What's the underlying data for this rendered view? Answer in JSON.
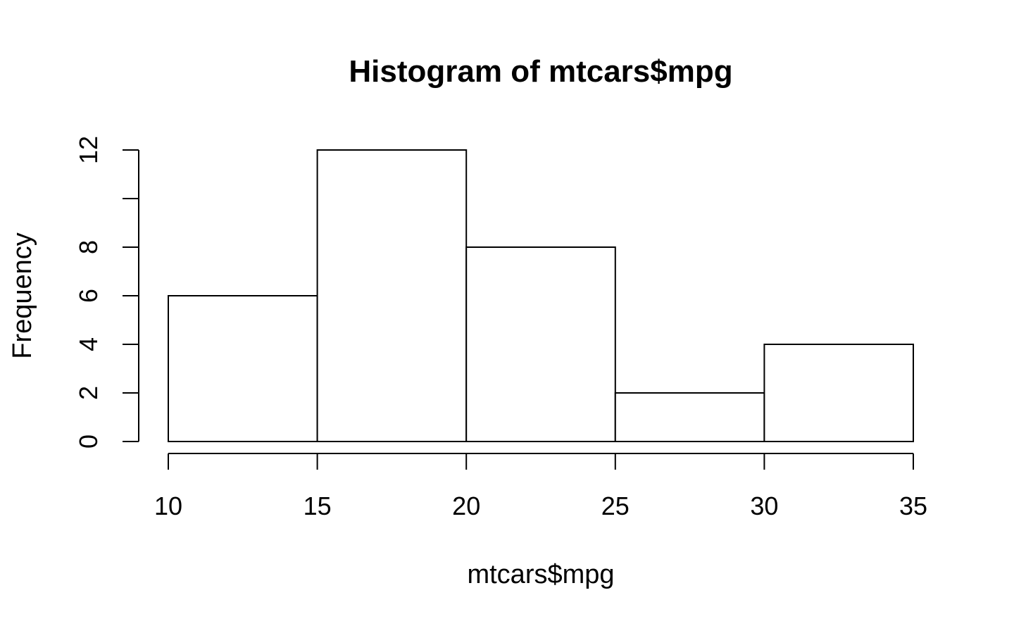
{
  "chart_data": {
    "type": "bar",
    "title": "Histogram of mtcars$mpg",
    "xlabel": "mtcars$mpg",
    "ylabel": "Frequency",
    "bins": [
      {
        "from": 10,
        "to": 15,
        "count": 6
      },
      {
        "from": 15,
        "to": 20,
        "count": 12
      },
      {
        "from": 20,
        "to": 25,
        "count": 8
      },
      {
        "from": 25,
        "to": 30,
        "count": 2
      },
      {
        "from": 30,
        "to": 35,
        "count": 4
      }
    ],
    "xlim": [
      10,
      35
    ],
    "ylim": [
      0,
      12
    ],
    "xticks": [
      10,
      15,
      20,
      25,
      30,
      35
    ],
    "yticks": [
      0,
      2,
      4,
      6,
      8,
      10,
      12
    ],
    "ytick_labels": [
      "0",
      "2",
      "4",
      "6",
      "8",
      "",
      "12"
    ],
    "grid": false,
    "bar_fill": "#ffffff",
    "bar_stroke": "#000000"
  }
}
